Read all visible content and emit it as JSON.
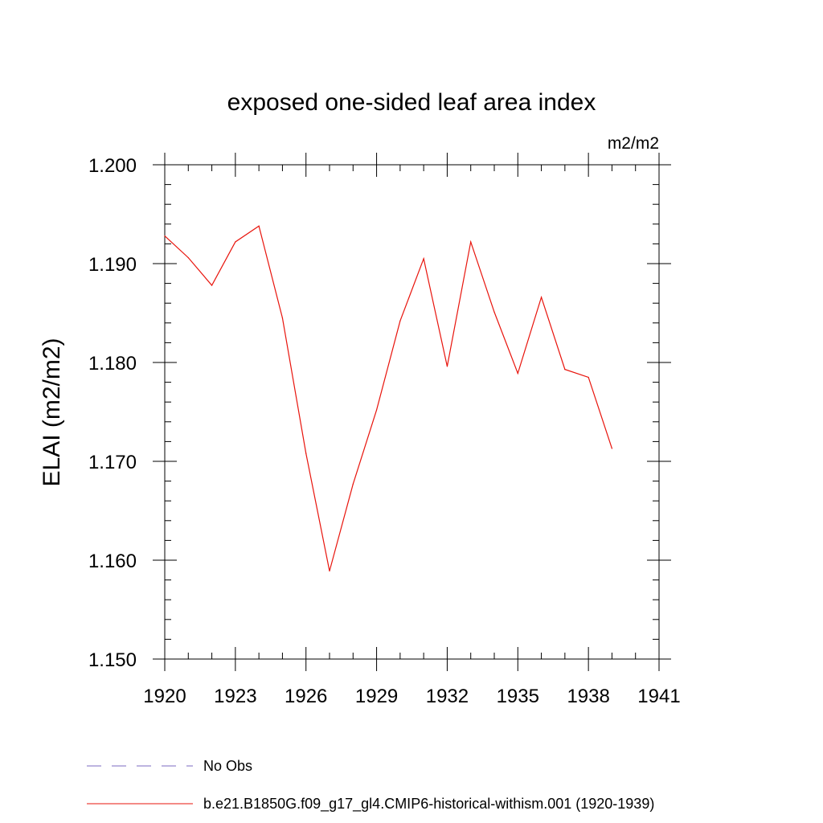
{
  "chart_data": {
    "type": "line",
    "title": "exposed one-sided leaf area index",
    "units": "m2/m2",
    "ylabel": "ELAI  (m2/m2)",
    "xlabel": "",
    "xlim": [
      1920,
      1941
    ],
    "ylim": [
      1.15,
      1.2
    ],
    "x_ticks": [
      1920,
      1923,
      1926,
      1929,
      1932,
      1935,
      1938,
      1941
    ],
    "x_tick_labels": [
      "1920",
      "1923",
      "1926",
      "1929",
      "1932",
      "1935",
      "1938",
      "1941"
    ],
    "y_ticks": [
      1.15,
      1.16,
      1.17,
      1.18,
      1.19,
      1.2
    ],
    "y_tick_labels": [
      "1.150",
      "1.160",
      "1.170",
      "1.180",
      "1.190",
      "1.200"
    ],
    "series": [
      {
        "name": "No Obs",
        "color": "#7b68c0",
        "dash": "dashed",
        "x": [],
        "values": []
      },
      {
        "name": "b.e21.B1850G.f09_g17_gl4.CMIP6-historical-withism.001 (1920-1939)",
        "color": "#e8140c",
        "dash": "solid",
        "x": [
          1920,
          1921,
          1922,
          1923,
          1924,
          1925,
          1926,
          1927,
          1928,
          1929,
          1930,
          1931,
          1932,
          1933,
          1934,
          1935,
          1936,
          1937,
          1938,
          1939
        ],
        "values": [
          1.1928,
          1.1906,
          1.1878,
          1.1922,
          1.1938,
          1.1845,
          1.1708,
          1.1589,
          1.1677,
          1.1752,
          1.1842,
          1.1905,
          1.1796,
          1.1922,
          1.1851,
          1.1789,
          1.1866,
          1.1793,
          1.1785,
          1.1713
        ]
      }
    ],
    "legend_position": "bottom-left",
    "grid": false
  }
}
